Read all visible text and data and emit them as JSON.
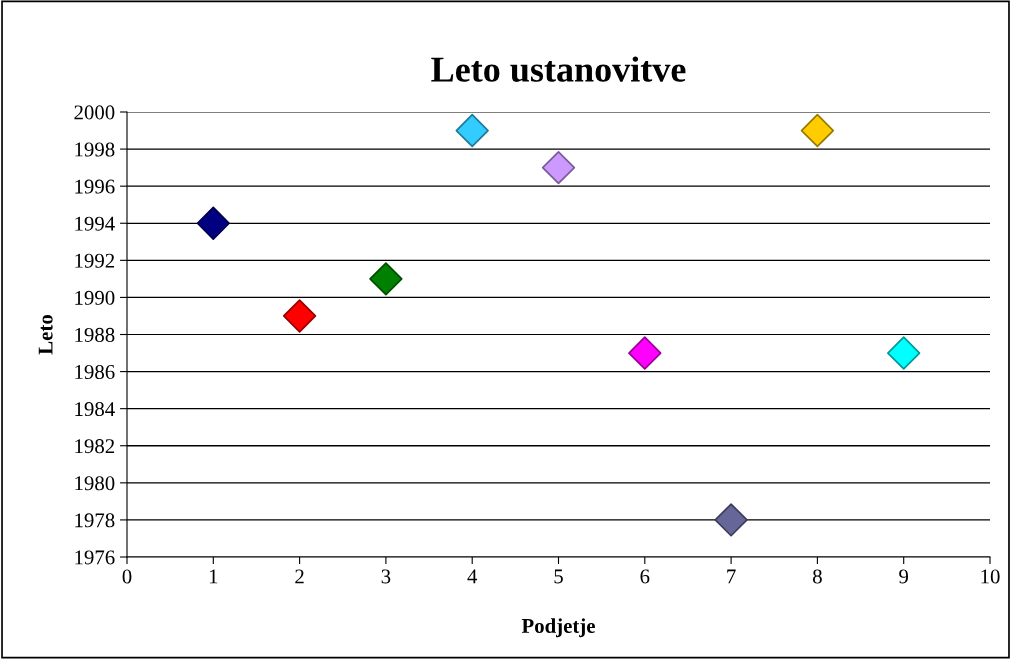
{
  "chart_data": {
    "type": "scatter",
    "title": "Leto ustanovitve",
    "xlabel": "Podjetje",
    "ylabel": "Leto",
    "x": [
      1,
      2,
      3,
      4,
      5,
      6,
      7,
      8,
      9
    ],
    "values": [
      1994,
      1989,
      1991,
      1999,
      1997,
      1987,
      1978,
      1999,
      1987
    ],
    "colors": [
      "#000080",
      "#ff0000",
      "#008000",
      "#33ccff",
      "#cc99ff",
      "#ff00ff",
      "#666699",
      "#ffcc00",
      "#00ffff"
    ],
    "xlim": [
      0,
      10
    ],
    "xticks": [
      0,
      1,
      2,
      3,
      4,
      5,
      6,
      7,
      8,
      9,
      10
    ],
    "ylim": [
      1976,
      2000
    ],
    "yticks": [
      1976,
      1978,
      1980,
      1982,
      1984,
      1986,
      1988,
      1990,
      1992,
      1994,
      1996,
      1998,
      2000
    ],
    "grid": "y",
    "marker": "diamond",
    "legend": false
  }
}
